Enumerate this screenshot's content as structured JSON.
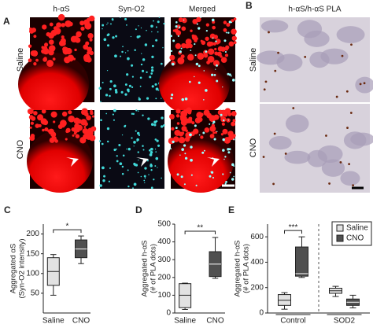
{
  "panels": {
    "A": {
      "letter": "A",
      "columns": [
        "h-αS",
        "Syn-O2",
        "Merged"
      ],
      "rows": [
        "Saline",
        "CNO"
      ]
    },
    "B": {
      "letter": "B",
      "title": "h-αS/h-αS PLA",
      "rows": [
        "Saline",
        "CNO"
      ]
    }
  },
  "chart_data": [
    {
      "type": "box",
      "panel": "C",
      "ylabel": [
        "Aggregated αS",
        "(Syn-O2 intensity)"
      ],
      "categories": [
        "Saline",
        "CNO"
      ],
      "colors": [
        "#e2e2e2",
        "#505050"
      ],
      "values": [
        {
          "min": 45,
          "q1": 70,
          "median": 105,
          "q3": 140,
          "max": 148
        },
        {
          "min": 125,
          "q1": 140,
          "median": 162,
          "q3": 185,
          "max": 195
        }
      ],
      "ylim": [
        0,
        225
      ],
      "yticks": [
        50,
        100,
        150,
        200
      ],
      "significance": "*"
    },
    {
      "type": "box",
      "panel": "D",
      "ylabel": [
        "Aggregated h-αS",
        "(# of PLA dots)"
      ],
      "categories": [
        "Saline",
        "CNO"
      ],
      "colors": [
        "#e2e2e2",
        "#505050"
      ],
      "values": [
        {
          "min": 20,
          "q1": 30,
          "median": 100,
          "q3": 165,
          "max": 168
        },
        {
          "min": 195,
          "q1": 205,
          "median": 275,
          "q3": 345,
          "max": 425
        }
      ],
      "ylim": [
        0,
        500
      ],
      "yticks": [
        0,
        100,
        200,
        300,
        400,
        500
      ],
      "significance": "**"
    },
    {
      "type": "box",
      "panel": "E",
      "ylabel": [
        "Aggregated h-αS",
        "(# of PLA dots)"
      ],
      "categories": [
        "Control",
        "SOD2"
      ],
      "series": [
        {
          "name": "Saline",
          "color": "#e2e2e2",
          "values": [
            {
              "min": 30,
              "q1": 60,
              "median": 100,
              "q3": 145,
              "max": 160
            },
            {
              "min": 130,
              "q1": 155,
              "median": 175,
              "q3": 195,
              "max": 210
            }
          ]
        },
        {
          "name": "CNO",
          "color": "#505050",
          "values": [
            {
              "min": 280,
              "q1": 290,
              "median": 310,
              "q3": 520,
              "max": 600
            },
            {
              "min": 40,
              "q1": 60,
              "median": 85,
              "q3": 110,
              "max": 140
            }
          ]
        }
      ],
      "ylim": [
        0,
        700
      ],
      "yticks": [
        0,
        200,
        400,
        600
      ],
      "significance": "***",
      "legend": "upper right"
    }
  ]
}
